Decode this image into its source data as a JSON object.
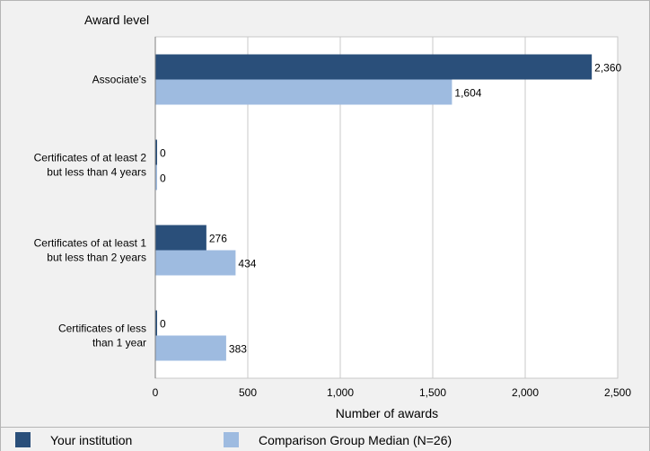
{
  "chart_data": {
    "type": "bar",
    "orientation": "horizontal",
    "title": "",
    "ylabel": "Award level",
    "xlabel": "Number of awards",
    "xlim": [
      0,
      2500
    ],
    "xticks": [
      0,
      500,
      1000,
      1500,
      2000,
      2500
    ],
    "xtick_labels": [
      "0",
      "500",
      "1,000",
      "1,500",
      "2,000",
      "2,500"
    ],
    "grid": true,
    "legend_position": "bottom",
    "categories": [
      [
        "Associate's"
      ],
      [
        "Certificates of at least 2",
        "but less than 4 years"
      ],
      [
        "Certificates of at least 1",
        "but  less than 2 years"
      ],
      [
        "Certificates of less",
        "than 1 year"
      ]
    ],
    "series": [
      {
        "name": "Your institution",
        "color": "#2a4f7a",
        "values": [
          2360,
          0,
          276,
          0
        ],
        "labels": [
          "2,360",
          "0",
          "276",
          "0"
        ]
      },
      {
        "name": "Comparison Group Median (N=26)",
        "color": "#9ebbe0",
        "values": [
          1604,
          0,
          434,
          383
        ],
        "labels": [
          "1,604",
          "0",
          "434",
          "383"
        ]
      }
    ]
  }
}
